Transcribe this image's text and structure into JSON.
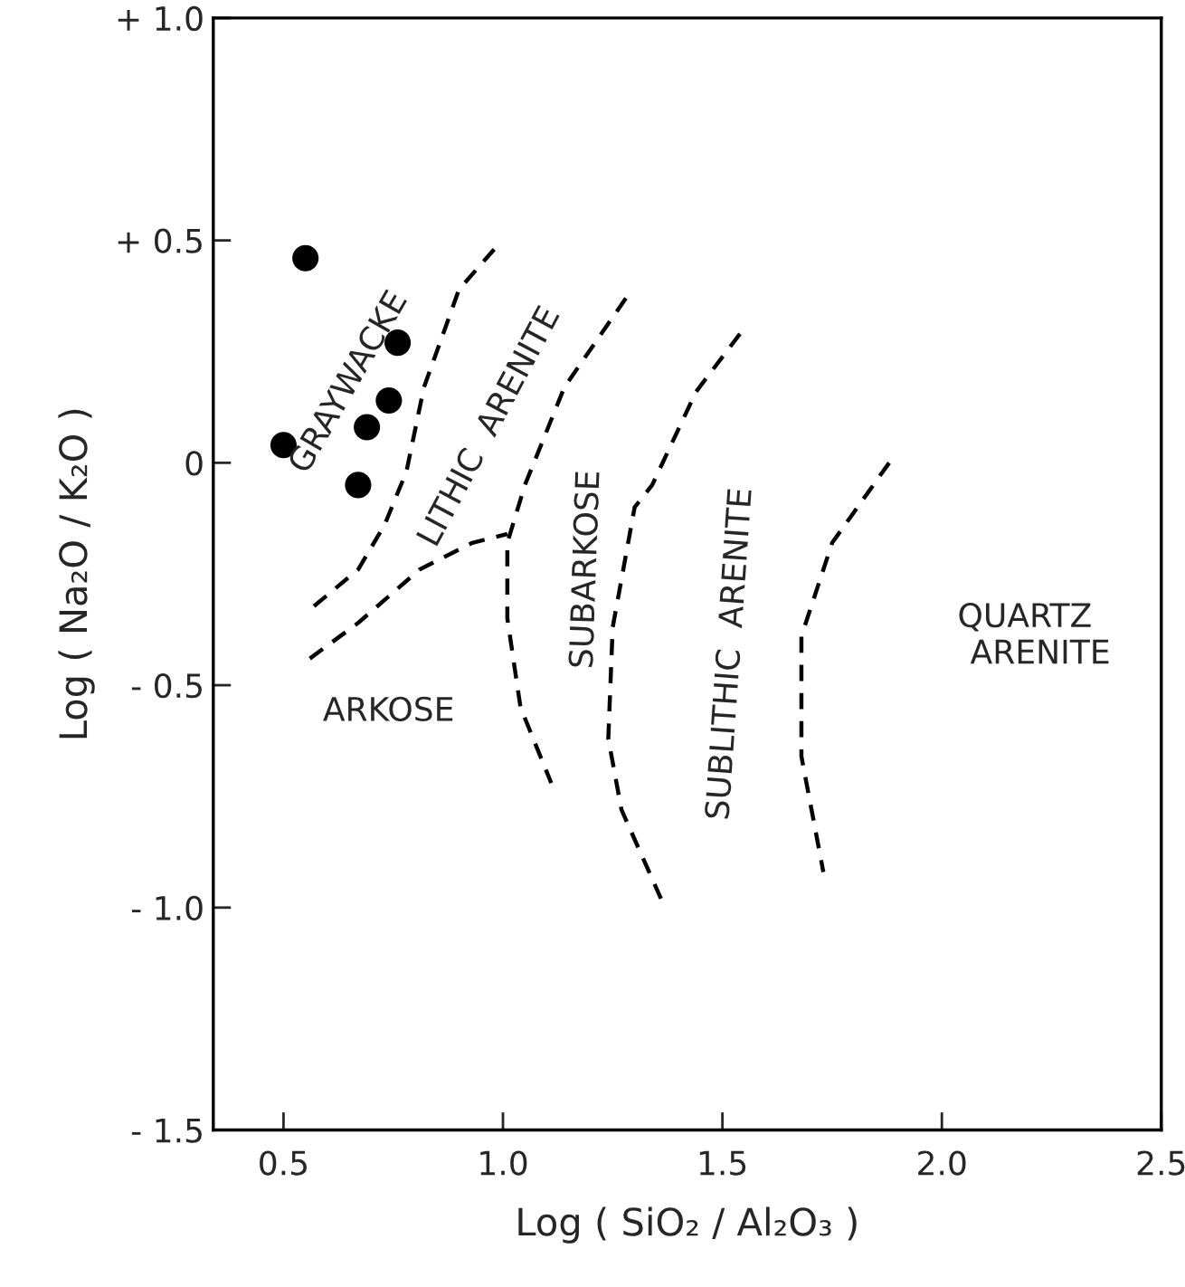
{
  "chart_data": {
    "type": "scatter",
    "xlabel": "Log ( SiO₂ / Al₂O₃ )",
    "ylabel": "Log ( Na₂O / K₂O )",
    "xlim": [
      0.34,
      2.5
    ],
    "ylim": [
      -1.5,
      1.0
    ],
    "xticks": [
      0.5,
      {
        "value": 1.0,
        "label": "1.0"
      },
      1.5,
      {
        "value": 2.0,
        "label": "2.0"
      },
      2.5
    ],
    "yticks": [
      {
        "value": 1.0,
        "label": "+ 1.0"
      },
      {
        "value": 0.5,
        "label": "+ 0.5"
      },
      0,
      {
        "value": -0.5,
        "label": "- 0.5"
      },
      {
        "value": -1.0,
        "label": "- 1.0"
      },
      {
        "value": -1.5,
        "label": "- 1.5"
      }
    ],
    "grid": false,
    "legend": false,
    "series": [
      {
        "color": "#000000",
        "marker": "circle",
        "x": [
          0.55,
          0.76,
          0.74,
          0.69,
          0.5,
          0.67
        ],
        "values": [
          0.46,
          0.27,
          0.14,
          0.08,
          0.04,
          -0.05
        ]
      },
      {
        "type": "line",
        "color": "#000000",
        "marker": "none",
        "line_style": "dashed",
        "x": [
          0.98,
          0.9,
          0.82,
          0.78,
          0.73,
          0.67,
          0.56
        ],
        "values": [
          0.48,
          0.39,
          0.17,
          -0.02,
          -0.14,
          -0.24,
          -0.33
        ]
      },
      {
        "type": "line",
        "color": "#000000",
        "marker": "none",
        "line_style": "dashed",
        "x": [
          0.56,
          0.67,
          0.81,
          0.93,
          1.01
        ],
        "values": [
          -0.44,
          -0.36,
          -0.24,
          -0.18,
          -0.16
        ]
      },
      {
        "type": "line",
        "color": "#000000",
        "marker": "none",
        "line_style": "dashed",
        "x": [
          1.28,
          1.14,
          1.05,
          1.01,
          1.01,
          1.04,
          1.11
        ],
        "values": [
          0.37,
          0.17,
          -0.05,
          -0.18,
          -0.35,
          -0.55,
          -0.72
        ]
      },
      {
        "type": "line",
        "color": "#000000",
        "marker": "none",
        "line_style": "dashed",
        "x": [
          1.54,
          1.44,
          1.34,
          1.3,
          1.25,
          1.24,
          1.27,
          1.36
        ],
        "values": [
          0.29,
          0.16,
          -0.05,
          -0.1,
          -0.37,
          -0.62,
          -0.78,
          -0.98
        ]
      },
      {
        "type": "line",
        "color": "#000000",
        "marker": "none",
        "line_style": "dashed",
        "x": [
          1.88,
          1.75,
          1.68,
          1.68,
          1.73
        ],
        "values": [
          0.0,
          -0.18,
          -0.39,
          -0.66,
          -0.92
        ]
      }
    ],
    "annotations": [
      "GRAYWACKE",
      "LITHIC  ARENITE",
      "ARKOSE",
      "SUBARKOSE",
      "SUBLITHIC  ARENITE",
      "QUARTZ\n   ARENITE"
    ]
  }
}
